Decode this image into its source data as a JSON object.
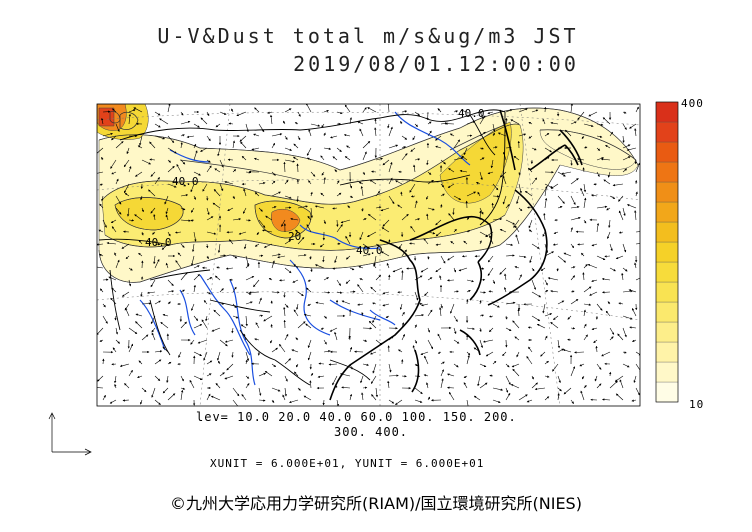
{
  "header": {
    "title": "U-V&Dust total m/s&ug/m3 JST",
    "datetime": "2019/08/01.12:00:00"
  },
  "map": {
    "contour_labels": [
      "40.0",
      "40.0",
      "40.0",
      "40.0",
      "20"
    ],
    "fill_colors": {
      "light": "#fff8c8",
      "mid": "#fbec73",
      "high": "#f5d836",
      "hot": "#f28a1e",
      "peak": "#e2421a"
    },
    "coastline_color": "#000000",
    "river_color": "#1a4fe0"
  },
  "legend": {
    "levels_line1": "lev= 10.0 20.0 40.0 60.0 100. 150. 200.",
    "levels_line2": "300. 400.",
    "units": "XUNIT = 6.000E+01, YUNIT = 6.000E+01",
    "colorbar_max": "400",
    "colorbar_min": "10",
    "colorbar_colors": [
      "#fffde6",
      "#fff8c8",
      "#fff3a8",
      "#fdee8a",
      "#fbe96d",
      "#f9e352",
      "#f7dc3b",
      "#f5d128",
      "#f3be1e",
      "#f2a71a",
      "#f08f17",
      "#ee7514",
      "#e95b12",
      "#e2421a",
      "#d9301a"
    ]
  },
  "footer": {
    "copyright": "©九州大学応用力学研究所(RIAM)/国立環境研究所(NIES)"
  }
}
